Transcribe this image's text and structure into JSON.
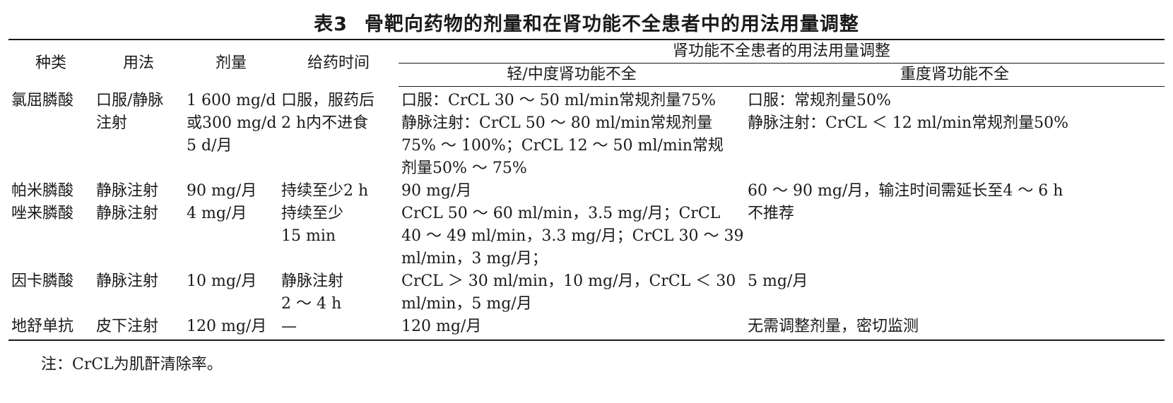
{
  "title": {
    "num": "表3",
    "text": "骨靶向药物的剂量和在肾功能不全患者中的用法用量调整"
  },
  "headers": {
    "type": "种类",
    "usage": "用法",
    "dose": "剂量",
    "timing": "给药时间",
    "group": "肾功能不全患者的用法用量调整",
    "mild": "轻/中度肾功能不全",
    "severe": "重度肾功能不全"
  },
  "rows": [
    {
      "type": "氯屈膦酸",
      "usage": [
        "口服/静脉",
        "注射"
      ],
      "dose": [
        "1 600 mg/d",
        "或300 mg/d，",
        "5 d/月"
      ],
      "timing": [
        "口服，服药后",
        "2 h内不进食"
      ],
      "mild": [
        "口服：CrCL 30 ～ 50 ml/min常规剂量75%",
        "静脉注射：CrCL 50 ～ 80 ml/min常规剂量",
        "75% ～ 100%；CrCL 12 ～ 50 ml/min常规",
        "剂量50% ～ 75%"
      ],
      "severe": [
        "口服：常规剂量50%",
        "静脉注射：CrCL ＜ 12 ml/min常规剂量50%"
      ]
    },
    {
      "type": "帕米膦酸",
      "usage": [
        "静脉注射"
      ],
      "dose": [
        "90 mg/月"
      ],
      "timing": [
        "持续至少2 h"
      ],
      "mild": [
        "90 mg/月"
      ],
      "severe": [
        "60 ～ 90 mg/月，输注时间需延长至4 ～ 6 h"
      ]
    },
    {
      "type": "唑来膦酸",
      "usage": [
        "静脉注射"
      ],
      "dose": [
        "4 mg/月"
      ],
      "timing": [
        "持续至少",
        "15 min"
      ],
      "mild": [
        "CrCL 50 ～ 60 ml/min，3.5 mg/月；CrCL",
        "40 ～ 49 ml/min，3.3 mg/月；CrCL 30 ～ 39",
        "ml/min，3 mg/月；"
      ],
      "severe": [
        "不推荐"
      ]
    },
    {
      "type": "因卡膦酸",
      "usage": [
        "静脉注射"
      ],
      "dose": [
        "10 mg/月"
      ],
      "timing": [
        "静脉注射",
        "2 ～ 4 h"
      ],
      "mild": [
        "CrCL ＞ 30 ml/min，10 mg/月，CrCL ＜ 30",
        "ml/min，5 mg/月"
      ],
      "severe": [
        "5 mg/月"
      ]
    },
    {
      "type": "地舒单抗",
      "usage": [
        "皮下注射"
      ],
      "dose": [
        "120 mg/月"
      ],
      "timing": [
        "—"
      ],
      "mild": [
        "120 mg/月"
      ],
      "severe": [
        "无需调整剂量，密切监测"
      ]
    }
  ],
  "note": "注：CrCL为肌酐清除率。"
}
